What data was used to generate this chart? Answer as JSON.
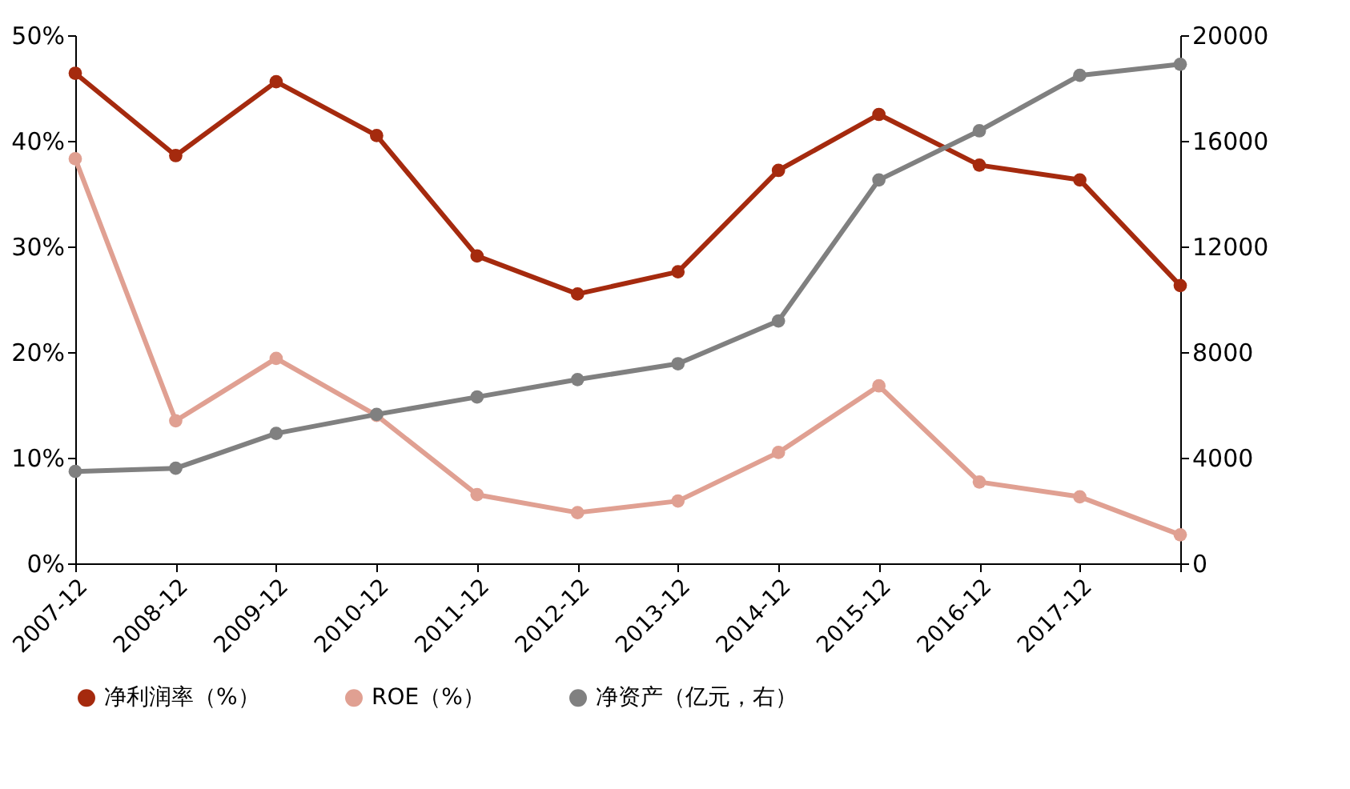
{
  "chart_data": {
    "type": "line",
    "categories": [
      "2007-12",
      "2008-12",
      "2009-12",
      "2010-12",
      "2011-12",
      "2012-12",
      "2013-12",
      "2014-12",
      "2015-12",
      "2016-12",
      "2017-12",
      null
    ],
    "series": [
      {
        "name": "净利润率（%）",
        "color": "#a52a0e",
        "values": [
          46.4,
          38.6,
          45.6,
          40.5,
          29.1,
          25.5,
          27.6,
          37.2,
          42.5,
          37.7,
          36.3,
          26.3
        ]
      },
      {
        "name": "ROE（%）",
        "color": "#e0a092",
        "values": [
          38.3,
          13.5,
          19.4,
          14.0,
          6.5,
          4.8,
          5.9,
          10.5,
          16.8,
          7.7,
          6.3,
          2.7
        ]
      },
      {
        "name": "净资产（亿元，右）",
        "color": "#808080",
        "axis": "y2",
        "values": [
          3480,
          3600,
          4920,
          5640,
          6300,
          6960,
          7560,
          9180,
          14520,
          16380,
          18480,
          18900
        ]
      }
    ],
    "ylim": [
      0,
      50
    ],
    "yticks": [
      {
        "value": 0,
        "label": "0%"
      },
      {
        "value": 10,
        "label": "10%"
      },
      {
        "value": 20,
        "label": "20%"
      },
      {
        "value": 30,
        "label": "30%"
      },
      {
        "value": 40,
        "label": "40%"
      },
      {
        "value": 50,
        "label": "50%"
      }
    ],
    "y2lim": [
      0,
      20000
    ],
    "y2ticks": [
      0,
      4000,
      8000,
      12000,
      16000,
      20000
    ],
    "grid": false,
    "legend": "bottom",
    "marker": "circle",
    "line_style": "solid"
  }
}
